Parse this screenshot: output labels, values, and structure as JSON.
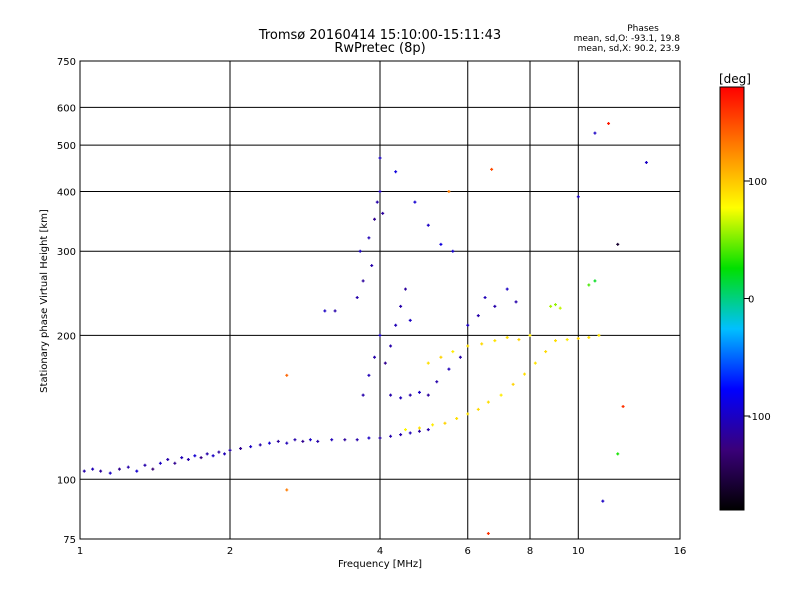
{
  "chart_data": {
    "type": "scatter",
    "title": "Tromsø 20160414 15:10:00-15:11:43",
    "subtitle": "RwPretec (8p)",
    "xlabel": "Frequency [MHz]",
    "ylabel": "Stationary phase Virtual Height [km]",
    "x_scale": "log",
    "y_scale": "log",
    "xlim": [
      1,
      16
    ],
    "ylim": [
      75,
      750
    ],
    "x_ticks": [
      1,
      2,
      4,
      6,
      8,
      10,
      16
    ],
    "y_ticks": [
      75,
      100,
      200,
      300,
      400,
      500,
      600,
      750
    ],
    "grid": true,
    "stats": {
      "heading": "Phases",
      "line_o": "mean, sd,O: -93.1, 19.8",
      "line_x": "mean, sd,X:  90.2, 23.9"
    },
    "colorbar": {
      "label": "[deg]",
      "range": [
        -180,
        180
      ],
      "ticks": [
        100,
        0,
        -100
      ],
      "colormap": "rainbow",
      "colors": [
        "#000000",
        "#3a007a",
        "#0000ff",
        "#00c0ff",
        "#00e000",
        "#ffff00",
        "#ff8000",
        "#ff0000"
      ]
    },
    "series": [
      {
        "points": [
          [
            1.02,
            104,
            -110
          ],
          [
            1.06,
            105,
            -105
          ],
          [
            1.1,
            104,
            -115
          ],
          [
            1.15,
            103,
            -100
          ],
          [
            1.2,
            105,
            -120
          ],
          [
            1.25,
            106,
            -110
          ],
          [
            1.3,
            104,
            -95
          ],
          [
            1.35,
            107,
            -110
          ],
          [
            1.4,
            105,
            -130
          ],
          [
            1.45,
            108,
            -100
          ],
          [
            1.5,
            110,
            -110
          ],
          [
            1.55,
            108,
            -120
          ],
          [
            1.6,
            111,
            -105
          ],
          [
            1.65,
            110,
            -110
          ],
          [
            1.7,
            112,
            -95
          ],
          [
            1.75,
            111,
            -125
          ],
          [
            1.8,
            113,
            -110
          ],
          [
            1.85,
            112,
            -100
          ],
          [
            1.9,
            114,
            -115
          ],
          [
            1.95,
            113,
            -105
          ],
          [
            2.0,
            115,
            -110
          ],
          [
            2.1,
            116,
            -120
          ],
          [
            2.2,
            117,
            -100
          ],
          [
            2.3,
            118,
            -110
          ],
          [
            2.4,
            119,
            -95
          ],
          [
            2.5,
            120,
            -115
          ],
          [
            2.6,
            119,
            -105
          ],
          [
            2.7,
            121,
            -110
          ],
          [
            2.8,
            120,
            -120
          ],
          [
            2.9,
            121,
            -100
          ],
          [
            3.0,
            120,
            -110
          ],
          [
            3.2,
            121,
            -105
          ],
          [
            3.4,
            121,
            -115
          ],
          [
            3.6,
            121,
            -110
          ],
          [
            3.8,
            122,
            -100
          ],
          [
            4.0,
            122,
            -112
          ],
          [
            4.2,
            123,
            -108
          ],
          [
            4.4,
            124,
            -110
          ],
          [
            4.6,
            125,
            -105
          ],
          [
            4.8,
            126,
            -115
          ],
          [
            5.0,
            127,
            -110
          ],
          [
            3.6,
            240,
            -110
          ],
          [
            3.65,
            300,
            -100
          ],
          [
            3.7,
            260,
            -115
          ],
          [
            3.8,
            320,
            -105
          ],
          [
            3.85,
            280,
            -110
          ],
          [
            3.9,
            350,
            -120
          ],
          [
            3.95,
            380,
            -110
          ],
          [
            4.0,
            400,
            -105
          ],
          [
            4.0,
            470,
            -100
          ],
          [
            4.05,
            360,
            -115
          ],
          [
            3.7,
            150,
            -110
          ],
          [
            3.8,
            165,
            -105
          ],
          [
            3.9,
            180,
            -110
          ],
          [
            4.0,
            200,
            -100
          ],
          [
            4.1,
            175,
            -120
          ],
          [
            4.2,
            190,
            -110
          ],
          [
            4.3,
            210,
            -105
          ],
          [
            4.4,
            230,
            -110
          ],
          [
            4.5,
            250,
            -115
          ],
          [
            4.6,
            215,
            -100
          ],
          [
            4.2,
            150,
            -110
          ],
          [
            4.4,
            148,
            -105
          ],
          [
            4.6,
            150,
            -110
          ],
          [
            4.8,
            152,
            -100
          ],
          [
            5.0,
            150,
            -115
          ],
          [
            5.2,
            160,
            -110
          ],
          [
            5.5,
            170,
            -105
          ],
          [
            5.8,
            180,
            -110
          ],
          [
            6.0,
            210,
            -100
          ],
          [
            6.3,
            220,
            -110
          ],
          [
            6.5,
            240,
            -105
          ],
          [
            6.8,
            230,
            -110
          ],
          [
            7.2,
            250,
            -100
          ],
          [
            7.5,
            235,
            -110
          ],
          [
            4.3,
            440,
            -90
          ],
          [
            4.7,
            380,
            -95
          ],
          [
            5.0,
            340,
            -100
          ],
          [
            5.3,
            310,
            -90
          ],
          [
            5.6,
            300,
            -95
          ],
          [
            4.5,
            127,
            80
          ],
          [
            4.8,
            128,
            90
          ],
          [
            5.1,
            130,
            85
          ],
          [
            5.4,
            131,
            95
          ],
          [
            5.7,
            134,
            90
          ],
          [
            6.0,
            137,
            88
          ],
          [
            6.3,
            140,
            92
          ],
          [
            6.6,
            145,
            90
          ],
          [
            7.0,
            150,
            85
          ],
          [
            7.4,
            158,
            95
          ],
          [
            7.8,
            166,
            90
          ],
          [
            8.2,
            175,
            88
          ],
          [
            8.6,
            185,
            92
          ],
          [
            9.0,
            195,
            90
          ],
          [
            9.5,
            196,
            85
          ],
          [
            10.0,
            197,
            95
          ],
          [
            10.5,
            198,
            90
          ],
          [
            11.0,
            200,
            88
          ],
          [
            5.0,
            175,
            90
          ],
          [
            5.3,
            180,
            95
          ],
          [
            5.6,
            185,
            85
          ],
          [
            6.0,
            190,
            90
          ],
          [
            6.4,
            192,
            92
          ],
          [
            6.8,
            195,
            88
          ],
          [
            7.2,
            198,
            90
          ],
          [
            7.6,
            196,
            95
          ],
          [
            8.0,
            200,
            85
          ],
          [
            8.8,
            230,
            60
          ],
          [
            9.0,
            232,
            55
          ],
          [
            9.2,
            228,
            65
          ],
          [
            10.5,
            255,
            40
          ],
          [
            10.8,
            260,
            20
          ],
          [
            5.5,
            400,
            130
          ],
          [
            6.7,
            445,
            150
          ],
          [
            10.0,
            390,
            -100
          ],
          [
            10.8,
            530,
            -100
          ],
          [
            11.5,
            555,
            170
          ],
          [
            12.0,
            310,
            -160
          ],
          [
            13.7,
            460,
            -100
          ],
          [
            11.2,
            90,
            -100
          ],
          [
            12.0,
            113,
            30
          ],
          [
            12.3,
            142,
            160
          ],
          [
            6.6,
            77,
            160
          ],
          [
            2.6,
            95,
            130
          ],
          [
            2.6,
            165,
            140
          ],
          [
            3.1,
            225,
            -100
          ],
          [
            3.25,
            225,
            -110
          ]
        ]
      }
    ]
  }
}
